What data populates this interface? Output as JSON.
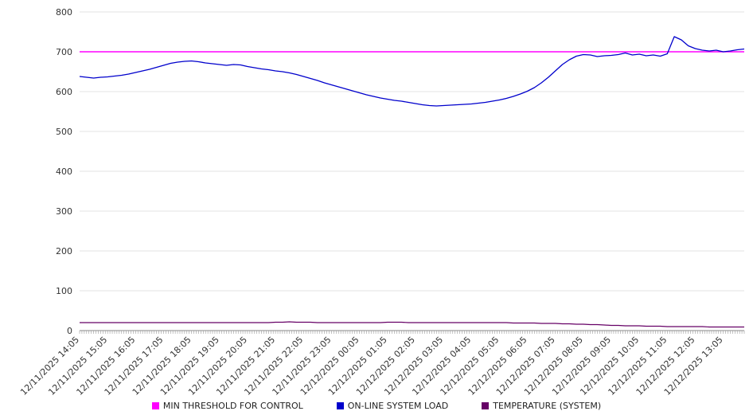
{
  "chart_data": {
    "type": "line",
    "title": "",
    "xlabel": "",
    "ylabel": "",
    "ylim": [
      0,
      800
    ],
    "yticks": [
      0,
      100,
      200,
      300,
      400,
      500,
      600,
      700,
      800
    ],
    "grid": true,
    "legend_position": "bottom",
    "x_span_hours": 23.75,
    "x_minor_ticks": 285,
    "x_labels": [
      "12/11/2025 14:05",
      "12/11/2025 15:05",
      "12/11/2025 16:05",
      "12/11/2025 17:05",
      "12/11/2025 18:05",
      "12/11/2025 19:05",
      "12/11/2025 20:05",
      "12/11/2025 21:05",
      "12/11/2025 22:05",
      "12/11/2025 23:05",
      "12/12/2025 00:05",
      "12/12/2025 01:05",
      "12/12/2025 02:05",
      "12/12/2025 03:05",
      "12/12/2025 04:05",
      "12/12/2025 05:05",
      "12/12/2025 06:05",
      "12/12/2025 07:05",
      "12/12/2025 08:05",
      "12/12/2025 09:05",
      "12/12/2025 10:05",
      "12/12/2025 11:05",
      "12/12/2025 12:05",
      "12/12/2025 13:05"
    ],
    "series": [
      {
        "name": "MIN THRESHOLD FOR CONTROL",
        "color": "#ff00ff",
        "width": 1.6,
        "values": [
          700,
          700
        ]
      },
      {
        "name": "ON-LINE SYSTEM LOAD",
        "color": "#0000cc",
        "width": 1.3,
        "values": [
          638,
          636,
          634,
          636,
          637,
          639,
          641,
          644,
          648,
          652,
          656,
          661,
          666,
          671,
          674,
          676,
          677,
          675,
          672,
          670,
          668,
          666,
          668,
          667,
          663,
          660,
          657,
          655,
          652,
          650,
          647,
          643,
          638,
          633,
          628,
          622,
          617,
          612,
          607,
          602,
          597,
          592,
          588,
          584,
          581,
          578,
          576,
          573,
          570,
          567,
          565,
          564,
          565,
          566,
          567,
          568,
          569,
          571,
          573,
          576,
          579,
          583,
          588,
          594,
          601,
          610,
          622,
          636,
          652,
          668,
          680,
          689,
          693,
          692,
          688,
          690,
          691,
          693,
          697,
          692,
          694,
          690,
          692,
          689,
          695,
          738,
          730,
          715,
          708,
          704,
          702,
          704,
          700,
          702,
          705,
          707
        ]
      },
      {
        "name": "TEMPERATURE (SYSTEM)",
        "color": "#660066",
        "width": 1.2,
        "values": [
          20,
          20,
          20,
          20,
          20,
          20,
          20,
          20,
          20,
          20,
          20,
          20,
          20,
          20,
          20,
          20,
          20,
          20,
          20,
          20,
          20,
          20,
          20,
          20,
          20,
          20,
          20,
          20,
          21,
          21,
          22,
          21,
          21,
          21,
          20,
          20,
          20,
          20,
          20,
          20,
          20,
          20,
          20,
          20,
          21,
          21,
          21,
          20,
          20,
          20,
          20,
          20,
          20,
          20,
          20,
          20,
          20,
          20,
          20,
          20,
          20,
          20,
          19,
          19,
          19,
          19,
          18,
          18,
          18,
          17,
          17,
          16,
          16,
          15,
          15,
          14,
          13,
          13,
          12,
          12,
          12,
          11,
          11,
          11,
          10,
          10,
          10,
          10,
          10,
          10,
          9,
          9,
          9,
          9,
          9,
          9
        ]
      }
    ]
  },
  "legend": {
    "items": [
      {
        "label": "MIN THRESHOLD FOR CONTROL",
        "color": "#ff00ff"
      },
      {
        "label": "ON-LINE SYSTEM LOAD",
        "color": "#0000cc"
      },
      {
        "label": "TEMPERATURE (SYSTEM)",
        "color": "#660066"
      }
    ]
  }
}
